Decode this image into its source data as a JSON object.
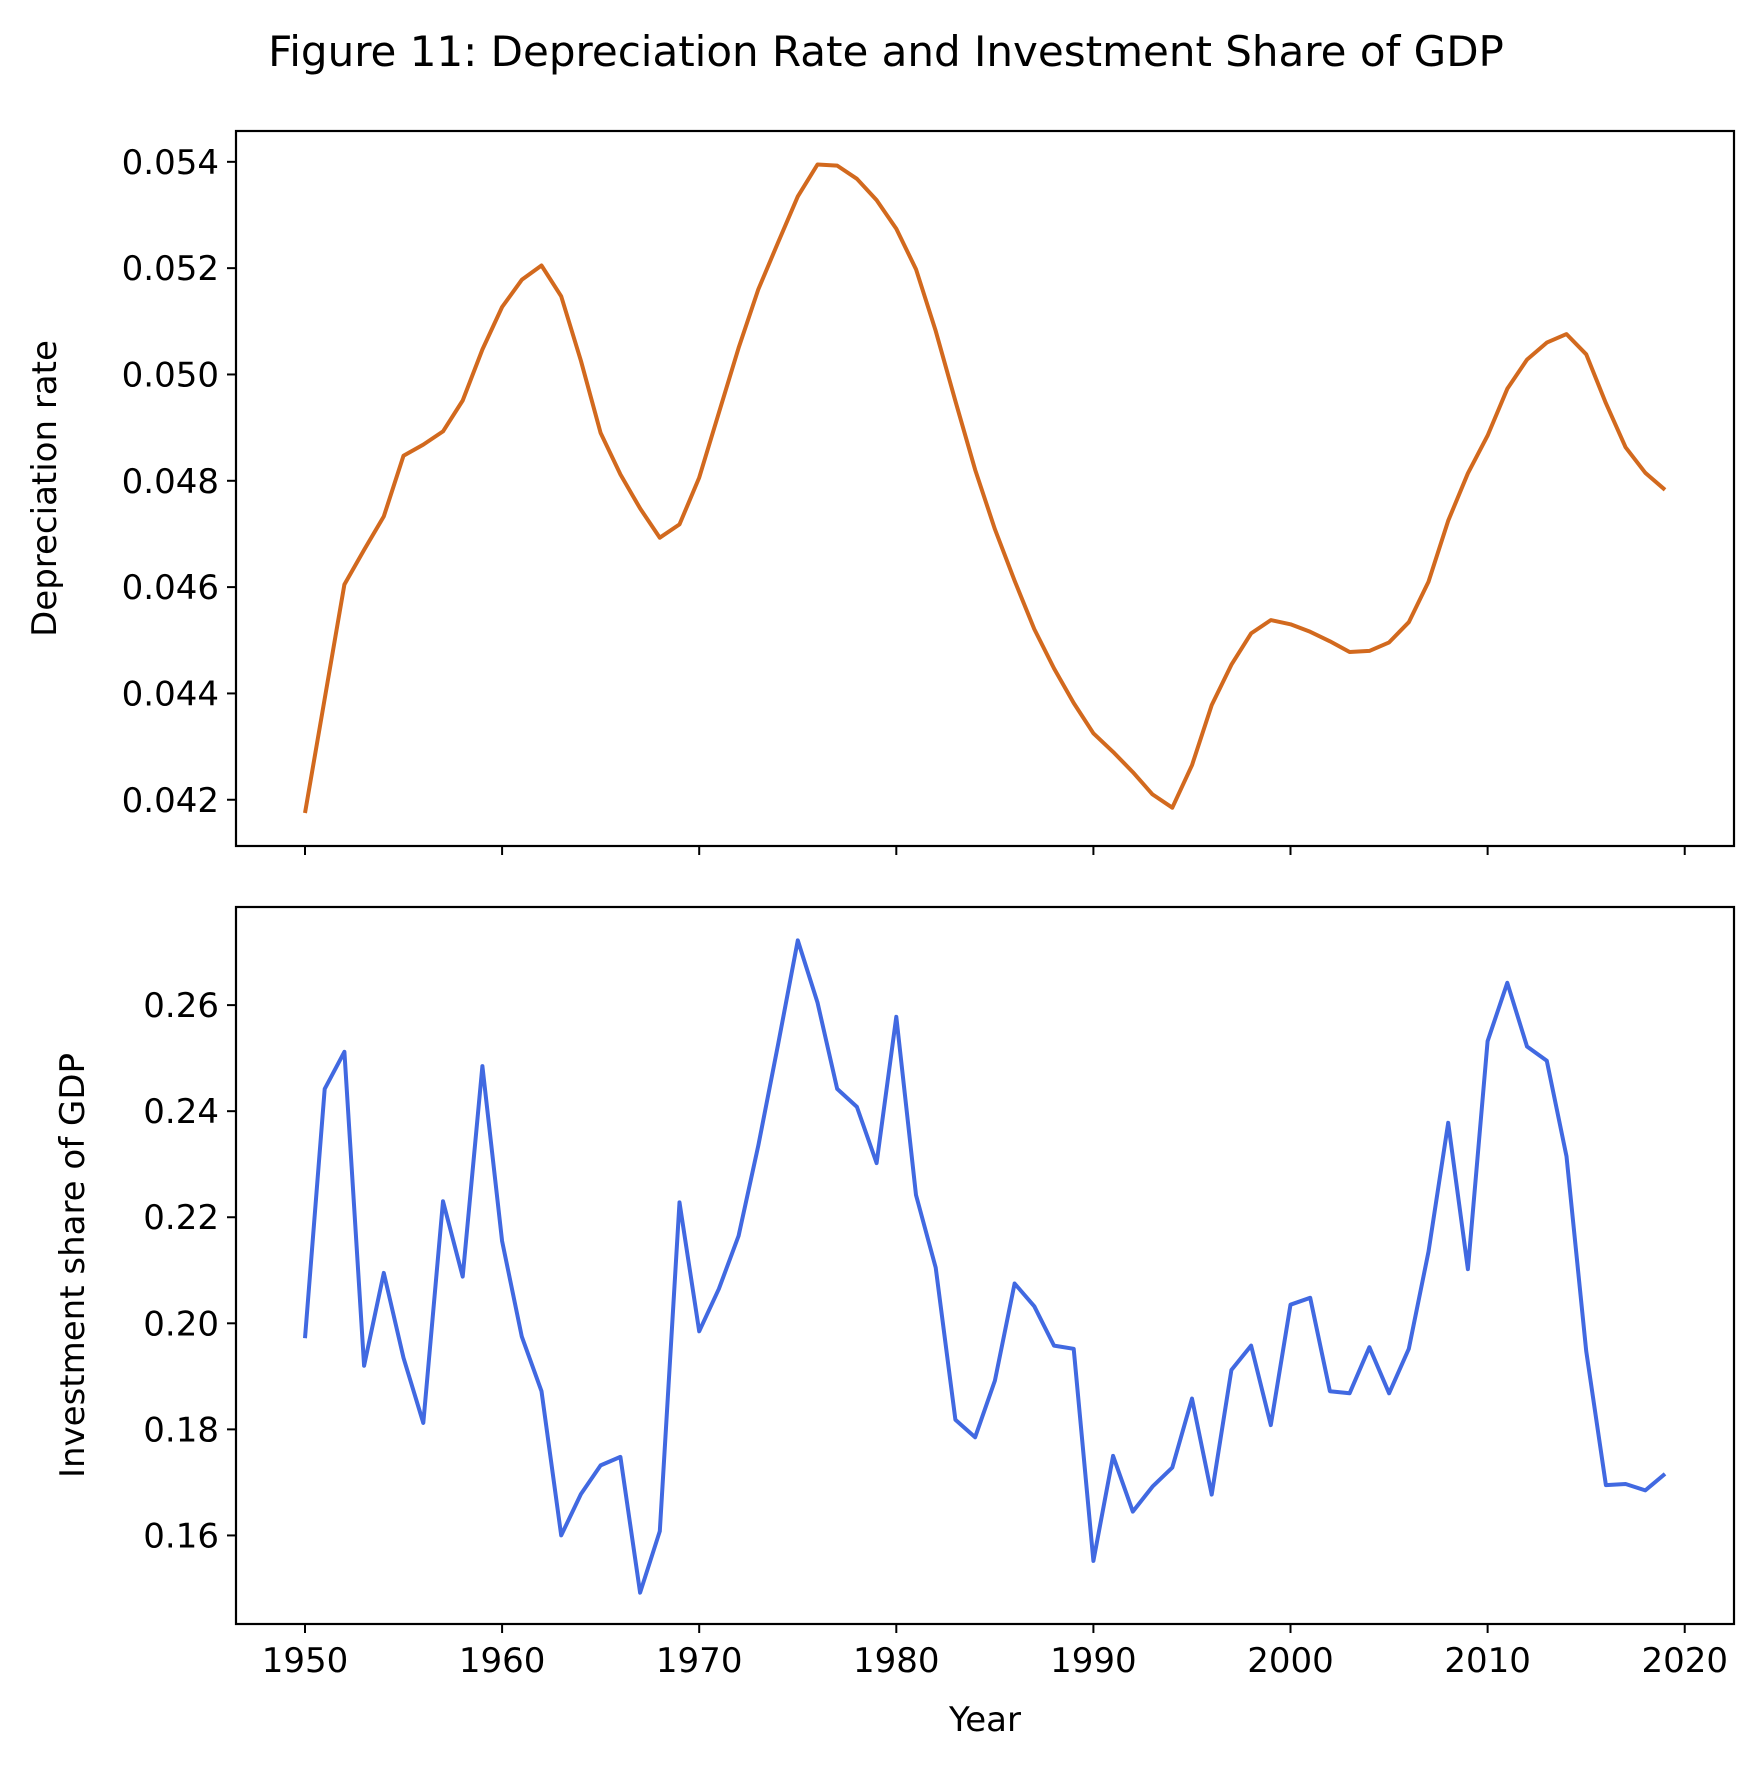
{
  "title": "Figure 11: Depreciation Rate and Investment Share of GDP",
  "chart_data": [
    {
      "type": "line",
      "ylabel": "Depreciation rate",
      "xlabel": "",
      "color": "#d2691e",
      "xlim": [
        1946.5,
        2022.5
      ],
      "ylim": [
        0.04113,
        0.05458
      ],
      "xticks": [
        1950,
        1960,
        1970,
        1980,
        1990,
        2000,
        2010,
        2020
      ],
      "xtick_labels_shown": false,
      "yticks": [
        0.042,
        0.044,
        0.046,
        0.048,
        0.05,
        0.052,
        0.054
      ],
      "ytick_labels": [
        "0.042",
        "0.044",
        "0.046",
        "0.048",
        "0.050",
        "0.052",
        "0.054"
      ],
      "grid": false,
      "x": [
        1950,
        1951,
        1952,
        1953,
        1954,
        1955,
        1956,
        1957,
        1958,
        1959,
        1960,
        1961,
        1962,
        1963,
        1964,
        1965,
        1966,
        1967,
        1968,
        1969,
        1970,
        1971,
        1972,
        1973,
        1974,
        1975,
        1976,
        1977,
        1978,
        1979,
        1980,
        1981,
        1982,
        1983,
        1984,
        1985,
        1986,
        1987,
        1988,
        1989,
        1990,
        1991,
        1992,
        1993,
        1994,
        1995,
        1996,
        1997,
        1998,
        1999,
        2000,
        2001,
        2002,
        2003,
        2004,
        2005,
        2006,
        2007,
        2008,
        2009,
        2010,
        2011,
        2012,
        2013,
        2014,
        2015,
        2016,
        2017,
        2018,
        2019
      ],
      "y": [
        0.04175,
        0.0439,
        0.04605,
        0.0467,
        0.04733,
        0.04847,
        0.04868,
        0.04893,
        0.04951,
        0.05047,
        0.05127,
        0.05178,
        0.05205,
        0.05147,
        0.05026,
        0.0489,
        0.04812,
        0.04748,
        0.04693,
        0.04718,
        0.04806,
        0.04928,
        0.0505,
        0.0516,
        0.05248,
        0.05335,
        0.05395,
        0.05393,
        0.05368,
        0.05328,
        0.05274,
        0.05198,
        0.05082,
        0.0495,
        0.04821,
        0.04709,
        0.04612,
        0.04521,
        0.04447,
        0.04382,
        0.04325,
        0.0429,
        0.04252,
        0.0421,
        0.04185,
        0.04265,
        0.04378,
        0.04454,
        0.04513,
        0.04538,
        0.0453,
        0.04516,
        0.04498,
        0.04478,
        0.0448,
        0.04496,
        0.04534,
        0.0461,
        0.04725,
        0.04814,
        0.04885,
        0.04973,
        0.05028,
        0.0506,
        0.05076,
        0.05038,
        0.04946,
        0.04863,
        0.04815,
        0.04783
      ]
    },
    {
      "type": "line",
      "ylabel": "Investment share of GDP",
      "xlabel": "Year",
      "color": "#4169e1",
      "xlim": [
        1946.5,
        2022.5
      ],
      "ylim": [
        0.1433,
        0.2785
      ],
      "xticks": [
        1950,
        1960,
        1970,
        1980,
        1990,
        2000,
        2010,
        2020
      ],
      "xtick_labels": [
        "1950",
        "1960",
        "1970",
        "1980",
        "1990",
        "2000",
        "2010",
        "2020"
      ],
      "yticks": [
        0.16,
        0.18,
        0.2,
        0.22,
        0.24,
        0.26
      ],
      "ytick_labels": [
        "0.16",
        "0.18",
        "0.20",
        "0.22",
        "0.24",
        "0.26"
      ],
      "grid": false,
      "x": [
        1950,
        1951,
        1952,
        1953,
        1954,
        1955,
        1956,
        1957,
        1958,
        1959,
        1960,
        1961,
        1962,
        1963,
        1964,
        1965,
        1966,
        1967,
        1968,
        1969,
        1970,
        1971,
        1972,
        1973,
        1974,
        1975,
        1976,
        1977,
        1978,
        1979,
        1980,
        1981,
        1982,
        1983,
        1984,
        1985,
        1986,
        1987,
        1988,
        1989,
        1990,
        1991,
        1992,
        1993,
        1994,
        1995,
        1996,
        1997,
        1998,
        1999,
        2000,
        2001,
        2002,
        2003,
        2004,
        2005,
        2006,
        2007,
        2008,
        2009,
        2010,
        2011,
        2012,
        2013,
        2014,
        2015,
        2016,
        2017,
        2018,
        2019
      ],
      "y": [
        0.1972,
        0.2442,
        0.2512,
        0.192,
        0.2095,
        0.1935,
        0.1812,
        0.223,
        0.2088,
        0.2485,
        0.2155,
        0.1975,
        0.1872,
        0.16,
        0.1678,
        0.1732,
        0.1748,
        0.1492,
        0.1608,
        0.2228,
        0.1985,
        0.2065,
        0.2165,
        0.2335,
        0.2525,
        0.2722,
        0.2605,
        0.2442,
        0.2408,
        0.2302,
        0.2578,
        0.2242,
        0.2105,
        0.1818,
        0.1785,
        0.1892,
        0.2075,
        0.2032,
        0.1958,
        0.1952,
        0.1552,
        0.175,
        0.1645,
        0.1692,
        0.1728,
        0.1858,
        0.1677,
        0.1912,
        0.1958,
        0.1808,
        0.2035,
        0.2048,
        0.1872,
        0.1868,
        0.1955,
        0.1868,
        0.1952,
        0.2135,
        0.2378,
        0.2102,
        0.2532,
        0.2642,
        0.2522,
        0.2495,
        0.2315,
        0.1948,
        0.1695,
        0.1697,
        0.1685,
        0.1716
      ]
    }
  ]
}
